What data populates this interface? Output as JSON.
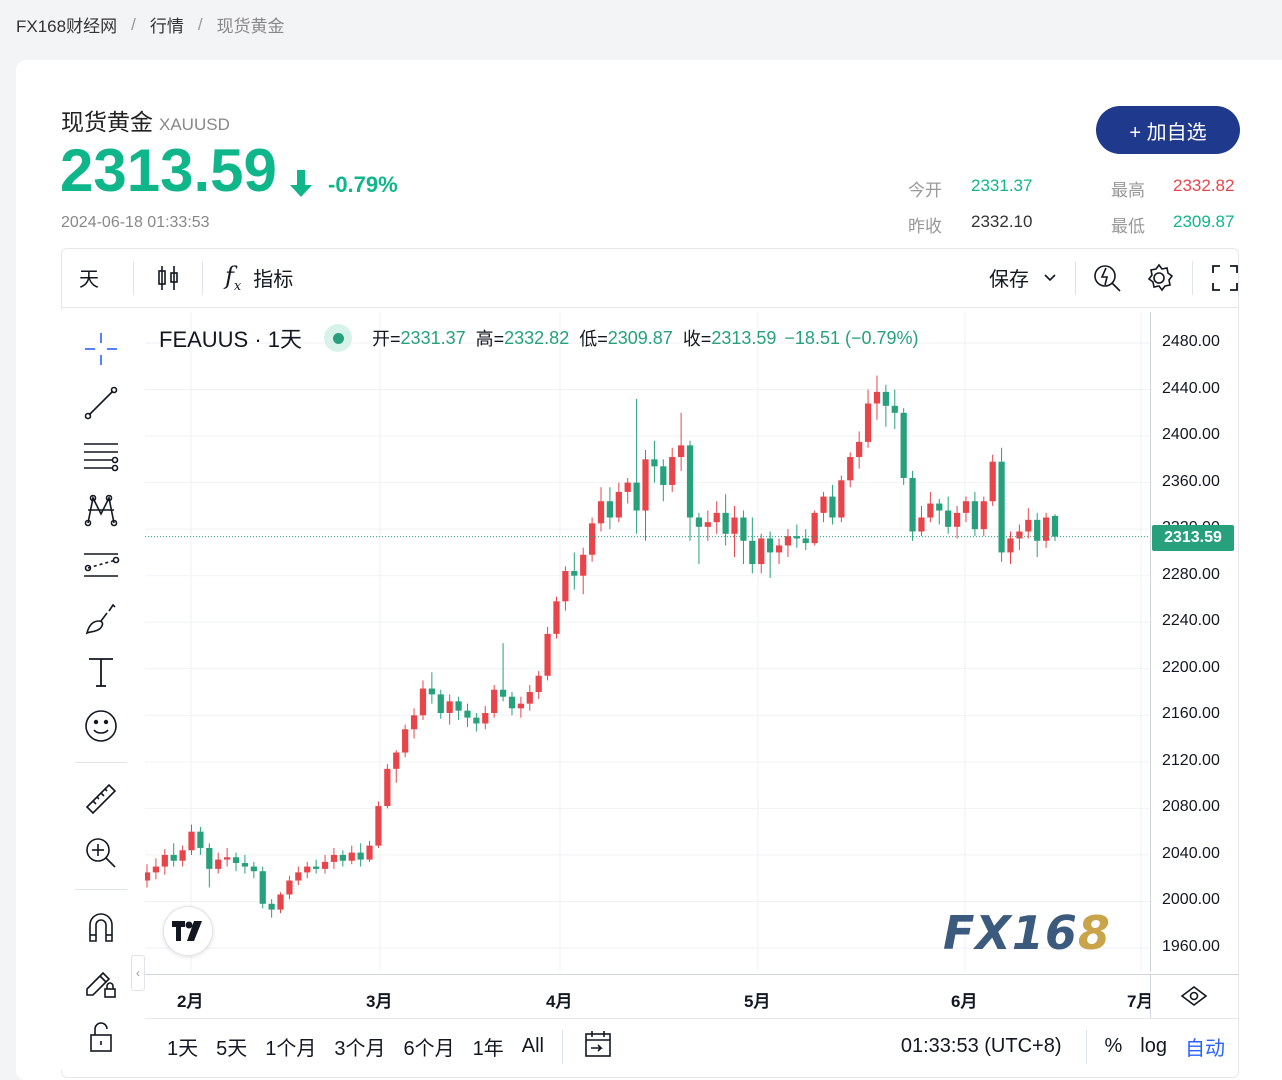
{
  "breadcrumb": {
    "home": "FX168财经网",
    "section": "行情",
    "current": "现货黄金",
    "sep": "/"
  },
  "header": {
    "name": "现货黄金",
    "code": "XAUUSD",
    "price": "2313.59",
    "change_pct": "-0.79%",
    "timestamp": "2024-06-18 01:33:53",
    "add_button": "+ 加自选",
    "stats": {
      "open_label": "今开",
      "open": "2331.37",
      "high_label": "最高",
      "high": "2332.82",
      "prev_label": "昨收",
      "prev": "2332.10",
      "low_label": "最低",
      "low": "2309.87"
    }
  },
  "toolbar": {
    "interval": "天",
    "indicators": "指标",
    "save": "保存"
  },
  "legend": {
    "symbol": "FEAUUS · 1天",
    "open_k": "开=",
    "open_v": "2331.37",
    "high_k": "高=",
    "high_v": "2332.82",
    "low_k": "低=",
    "low_v": "2309.87",
    "close_k": "收=",
    "close_v": "2313.59",
    "change": "−18.51 (−0.79%)"
  },
  "price_tag": "2313.59",
  "ranges": [
    "1天",
    "5天",
    "1个月",
    "3个月",
    "6个月",
    "1年",
    "All"
  ],
  "clock": "01:33:53 (UTC+8)",
  "scale_options": {
    "pct": "%",
    "log": "log",
    "auto": "自动"
  },
  "watermark": {
    "fx": "FX16",
    "eight": "8"
  },
  "colors": {
    "up": "#e8454b",
    "down": "#26a17b",
    "accent": "#1f3a8c"
  },
  "chart_data": {
    "type": "candlestick",
    "ylim": [
      1940,
      2500
    ],
    "yticks": [
      "2480.00",
      "2440.00",
      "2400.00",
      "2360.00",
      "2320.00",
      "2280.00",
      "2240.00",
      "2200.00",
      "2160.00",
      "2120.00",
      "2080.00",
      "2040.00",
      "2000.00",
      "1960.00"
    ],
    "xticks": [
      "2月",
      "3月",
      "4月",
      "5月",
      "6月",
      "7月"
    ],
    "last_price": 2313.59,
    "candles": [
      [
        2018,
        2032,
        2012,
        2025
      ],
      [
        2025,
        2037,
        2019,
        2030
      ],
      [
        2030,
        2045,
        2023,
        2040
      ],
      [
        2040,
        2050,
        2030,
        2035
      ],
      [
        2035,
        2048,
        2030,
        2044
      ],
      [
        2044,
        2066,
        2040,
        2060
      ],
      [
        2060,
        2064,
        2040,
        2046
      ],
      [
        2046,
        2050,
        2012,
        2028
      ],
      [
        2028,
        2042,
        2024,
        2036
      ],
      [
        2036,
        2046,
        2030,
        2038
      ],
      [
        2038,
        2042,
        2026,
        2033
      ],
      [
        2033,
        2040,
        2024,
        2030
      ],
      [
        2030,
        2034,
        2020,
        2026
      ],
      [
        2026,
        2030,
        1994,
        1998
      ],
      [
        1998,
        2002,
        1986,
        1993
      ],
      [
        1993,
        2008,
        1990,
        2006
      ],
      [
        2006,
        2022,
        2002,
        2018
      ],
      [
        2018,
        2030,
        2014,
        2025
      ],
      [
        2025,
        2034,
        2020,
        2030
      ],
      [
        2030,
        2036,
        2024,
        2028
      ],
      [
        2028,
        2040,
        2024,
        2034
      ],
      [
        2034,
        2046,
        2028,
        2040
      ],
      [
        2040,
        2044,
        2030,
        2035
      ],
      [
        2035,
        2048,
        2032,
        2042
      ],
      [
        2042,
        2050,
        2030,
        2036
      ],
      [
        2036,
        2052,
        2034,
        2048
      ],
      [
        2048,
        2086,
        2046,
        2082
      ],
      [
        2082,
        2118,
        2080,
        2114
      ],
      [
        2114,
        2130,
        2102,
        2128
      ],
      [
        2128,
        2152,
        2124,
        2148
      ],
      [
        2148,
        2166,
        2140,
        2160
      ],
      [
        2160,
        2190,
        2156,
        2183
      ],
      [
        2183,
        2197,
        2170,
        2178
      ],
      [
        2178,
        2182,
        2157,
        2162
      ],
      [
        2162,
        2178,
        2152,
        2172
      ],
      [
        2172,
        2176,
        2156,
        2164
      ],
      [
        2164,
        2170,
        2150,
        2158
      ],
      [
        2158,
        2162,
        2146,
        2153
      ],
      [
        2153,
        2168,
        2148,
        2162
      ],
      [
        2162,
        2186,
        2158,
        2182
      ],
      [
        2182,
        2222,
        2172,
        2176
      ],
      [
        2176,
        2180,
        2160,
        2166
      ],
      [
        2166,
        2176,
        2158,
        2170
      ],
      [
        2170,
        2186,
        2164,
        2180
      ],
      [
        2180,
        2198,
        2174,
        2194
      ],
      [
        2194,
        2236,
        2190,
        2230
      ],
      [
        2230,
        2262,
        2226,
        2258
      ],
      [
        2258,
        2288,
        2250,
        2284
      ],
      [
        2284,
        2300,
        2268,
        2280
      ],
      [
        2280,
        2304,
        2264,
        2298
      ],
      [
        2298,
        2330,
        2292,
        2325
      ],
      [
        2325,
        2356,
        2318,
        2344
      ],
      [
        2344,
        2356,
        2320,
        2330
      ],
      [
        2330,
        2360,
        2326,
        2352
      ],
      [
        2352,
        2364,
        2342,
        2360
      ],
      [
        2360,
        2432,
        2316,
        2336
      ],
      [
        2336,
        2388,
        2310,
        2380
      ],
      [
        2380,
        2396,
        2360,
        2374
      ],
      [
        2374,
        2380,
        2344,
        2358
      ],
      [
        2358,
        2390,
        2352,
        2382
      ],
      [
        2382,
        2420,
        2370,
        2392
      ],
      [
        2392,
        2396,
        2310,
        2330
      ],
      [
        2330,
        2334,
        2290,
        2322
      ],
      [
        2322,
        2336,
        2310,
        2326
      ],
      [
        2326,
        2344,
        2316,
        2334
      ],
      [
        2334,
        2350,
        2306,
        2316
      ],
      [
        2316,
        2340,
        2296,
        2330
      ],
      [
        2330,
        2336,
        2290,
        2310
      ],
      [
        2310,
        2330,
        2282,
        2290
      ],
      [
        2290,
        2316,
        2282,
        2312
      ],
      [
        2312,
        2318,
        2278,
        2300
      ],
      [
        2300,
        2312,
        2290,
        2306
      ],
      [
        2306,
        2320,
        2296,
        2314
      ],
      [
        2314,
        2324,
        2304,
        2312
      ],
      [
        2312,
        2320,
        2302,
        2308
      ],
      [
        2308,
        2336,
        2306,
        2334
      ],
      [
        2334,
        2352,
        2326,
        2348
      ],
      [
        2348,
        2358,
        2324,
        2330
      ],
      [
        2330,
        2366,
        2326,
        2362
      ],
      [
        2362,
        2386,
        2356,
        2382
      ],
      [
        2382,
        2404,
        2372,
        2395
      ],
      [
        2395,
        2440,
        2390,
        2428
      ],
      [
        2428,
        2452,
        2414,
        2438
      ],
      [
        2438,
        2444,
        2408,
        2426
      ],
      [
        2426,
        2440,
        2406,
        2420
      ],
      [
        2420,
        2424,
        2358,
        2364
      ],
      [
        2364,
        2370,
        2310,
        2318
      ],
      [
        2318,
        2340,
        2314,
        2330
      ],
      [
        2330,
        2352,
        2326,
        2342
      ],
      [
        2342,
        2346,
        2324,
        2336
      ],
      [
        2336,
        2348,
        2316,
        2322
      ],
      [
        2322,
        2340,
        2312,
        2334
      ],
      [
        2334,
        2348,
        2326,
        2344
      ],
      [
        2344,
        2352,
        2314,
        2320
      ],
      [
        2320,
        2348,
        2314,
        2344
      ],
      [
        2344,
        2384,
        2340,
        2378
      ],
      [
        2378,
        2390,
        2292,
        2300
      ],
      [
        2300,
        2318,
        2290,
        2312
      ],
      [
        2312,
        2324,
        2302,
        2318
      ],
      [
        2318,
        2338,
        2312,
        2328
      ],
      [
        2328,
        2334,
        2296,
        2310
      ],
      [
        2310,
        2334,
        2304,
        2330
      ],
      [
        2331.37,
        2332.82,
        2309.87,
        2313.59
      ]
    ]
  }
}
